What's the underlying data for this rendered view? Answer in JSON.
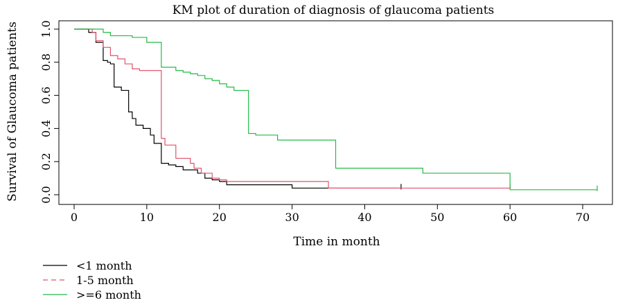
{
  "chart_data": {
    "type": "line",
    "title": "KM plot of duration of diagnosis of glaucoma patients",
    "xlabel": "Time in month",
    "ylabel": "Survival of Glaucoma patients",
    "xlim": [
      0,
      72
    ],
    "ylim": [
      0,
      1
    ],
    "x_ticks": [
      0,
      10,
      20,
      30,
      40,
      50,
      60,
      70
    ],
    "y_ticks": [
      0.0,
      0.2,
      0.4,
      0.6,
      0.8,
      1.0
    ],
    "x_tick_labels": [
      "0",
      "10",
      "20",
      "30",
      "40",
      "50",
      "60",
      "70"
    ],
    "y_tick_labels": [
      "0.0",
      "0.2",
      "0.4",
      "0.6",
      "0.8",
      "1.0"
    ],
    "grid": false,
    "legend_position": "bottom-left",
    "series": [
      {
        "name": "<1 month",
        "color": "#000000",
        "dash": "solid",
        "steps": [
          [
            0,
            1.0
          ],
          [
            2,
            0.98
          ],
          [
            3,
            0.92
          ],
          [
            4,
            0.81
          ],
          [
            4.6,
            0.8
          ],
          [
            5,
            0.79
          ],
          [
            5.5,
            0.65
          ],
          [
            6.5,
            0.63
          ],
          [
            7.5,
            0.5
          ],
          [
            8,
            0.46
          ],
          [
            8.5,
            0.42
          ],
          [
            9.5,
            0.4
          ],
          [
            10.5,
            0.36
          ],
          [
            11,
            0.31
          ],
          [
            12,
            0.19
          ],
          [
            13,
            0.18
          ],
          [
            14,
            0.17
          ],
          [
            15,
            0.15
          ],
          [
            17,
            0.13
          ],
          [
            18,
            0.1
          ],
          [
            19,
            0.09
          ],
          [
            20,
            0.08
          ],
          [
            21,
            0.06
          ],
          [
            30,
            0.04
          ],
          [
            45,
            0.04
          ]
        ],
        "end": 45,
        "censor": [
          [
            45,
            0.04
          ]
        ]
      },
      {
        "name": "1-5 month",
        "color": "#df536b",
        "dash": "dashed",
        "steps": [
          [
            0,
            1.0
          ],
          [
            2.5,
            0.98
          ],
          [
            3,
            0.93
          ],
          [
            4,
            0.89
          ],
          [
            5,
            0.84
          ],
          [
            6,
            0.82
          ],
          [
            7,
            0.79
          ],
          [
            8,
            0.76
          ],
          [
            9,
            0.75
          ],
          [
            12,
            0.34
          ],
          [
            12.5,
            0.3
          ],
          [
            14,
            0.22
          ],
          [
            16,
            0.19
          ],
          [
            16.5,
            0.16
          ],
          [
            17.5,
            0.13
          ],
          [
            19,
            0.1
          ],
          [
            20,
            0.09
          ],
          [
            21,
            0.08
          ],
          [
            35,
            0.04
          ],
          [
            60,
            0.04
          ]
        ],
        "end": 60,
        "censor": [
          [
            60,
            0.04
          ]
        ]
      },
      {
        "name": ">=6 month",
        "color": "#22bb44",
        "dash": "solid",
        "steps": [
          [
            0,
            1.0
          ],
          [
            4,
            0.98
          ],
          [
            5,
            0.96
          ],
          [
            8,
            0.95
          ],
          [
            10,
            0.92
          ],
          [
            12,
            0.77
          ],
          [
            14,
            0.75
          ],
          [
            15,
            0.74
          ],
          [
            16,
            0.73
          ],
          [
            17,
            0.72
          ],
          [
            18,
            0.7
          ],
          [
            19,
            0.69
          ],
          [
            20,
            0.67
          ],
          [
            21,
            0.65
          ],
          [
            22,
            0.63
          ],
          [
            24,
            0.37
          ],
          [
            25,
            0.36
          ],
          [
            26,
            0.36
          ],
          [
            28,
            0.33
          ],
          [
            33,
            0.33
          ],
          [
            36,
            0.16
          ],
          [
            48,
            0.13
          ],
          [
            60,
            0.03
          ],
          [
            72,
            0.03
          ]
        ],
        "end": 72,
        "censor": [
          [
            72,
            0.03
          ]
        ]
      }
    ]
  }
}
